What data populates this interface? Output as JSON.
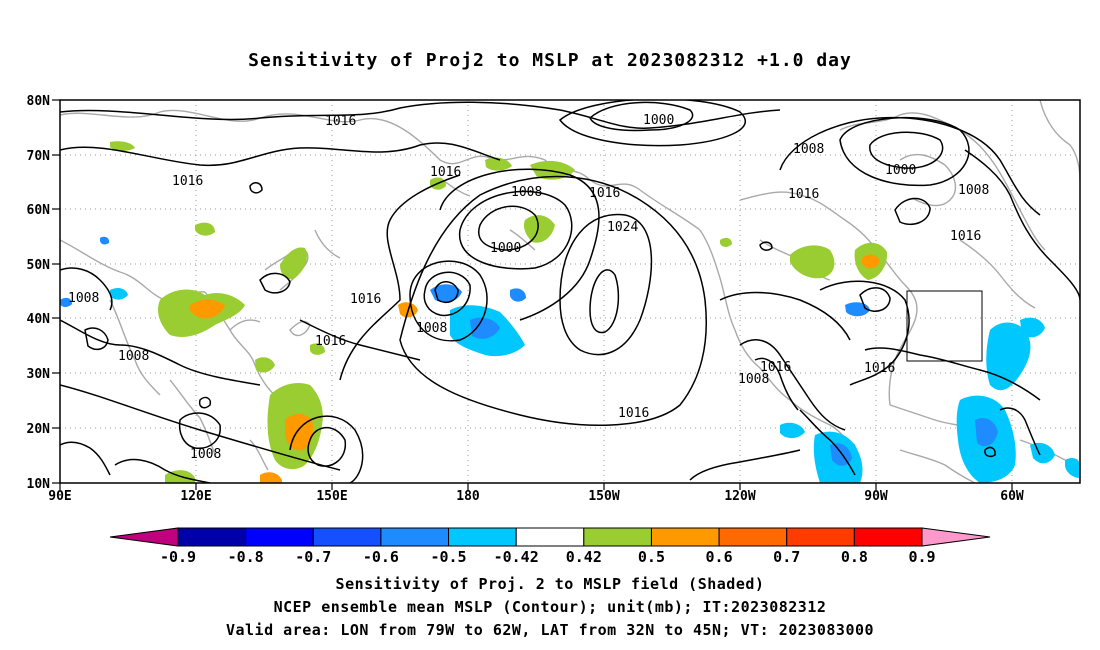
{
  "title": "Sensitivity of Proj2 to MSLP at 2023082312 +1.0 day",
  "lat_labels": [
    "80N",
    "70N",
    "60N",
    "50N",
    "40N",
    "30N",
    "20N",
    "10N"
  ],
  "lon_labels": [
    "90E",
    "120E",
    "150E",
    "180",
    "150W",
    "120W",
    "90W",
    "60W"
  ],
  "contour_labels": [
    {
      "text": "1016",
      "name": "contour-1016-northpacific"
    },
    {
      "text": "1016",
      "name": "contour-1016-siberia"
    },
    {
      "text": "1000",
      "name": "contour-1000-arctic"
    },
    {
      "text": "1008",
      "name": "contour-1008-hudson"
    },
    {
      "text": "1000",
      "name": "contour-1000-greenland"
    },
    {
      "text": "1008",
      "name": "contour-1008-labrador"
    },
    {
      "text": "1016",
      "name": "contour-1016-canada"
    },
    {
      "text": "1016",
      "name": "contour-1016-atlantic"
    },
    {
      "text": "1016",
      "name": "contour-1016-sea-of-okhotsk"
    },
    {
      "text": "1008",
      "name": "contour-1008-bering"
    },
    {
      "text": "1016",
      "name": "contour-1016-gulf-alaska"
    },
    {
      "text": "1024",
      "name": "contour-1024-high"
    },
    {
      "text": "1000",
      "name": "contour-1000-low"
    },
    {
      "text": "1016",
      "name": "contour-1016-kamchatka"
    },
    {
      "text": "1008",
      "name": "contour-1008-aleutian"
    },
    {
      "text": "1016",
      "name": "contour-1016-japan"
    },
    {
      "text": "1008",
      "name": "contour-1008-india"
    },
    {
      "text": "1008",
      "name": "contour-1008-bay-of-bengal"
    },
    {
      "text": "1008",
      "name": "contour-1008-philippine"
    },
    {
      "text": "1016",
      "name": "contour-1016-subtropical"
    },
    {
      "text": "1016",
      "name": "contour-1016-mexico"
    },
    {
      "text": "1008",
      "name": "contour-1008-mexico"
    },
    {
      "text": "1016",
      "name": "contour-1016-bermuda"
    }
  ],
  "colorbar": {
    "labels": [
      "-0.9",
      "-0.8",
      "-0.7",
      "-0.6",
      "-0.5",
      "-0.42",
      "0.42",
      "0.5",
      "0.6",
      "0.7",
      "0.8",
      "0.9"
    ],
    "colors": [
      "#c0007c",
      "#0000a8",
      "#0000ff",
      "#1450ff",
      "#1e8cff",
      "#00c8ff",
      "#ffffff",
      "#9acd32",
      "#ff9900",
      "#ff6a00",
      "#ff3c00",
      "#ff0000",
      "#ff99cc"
    ]
  },
  "footer": {
    "line1": "Sensitivity of Proj. 2 to MSLP field (Shaded)",
    "line2": "NCEP ensemble mean MSLP (Contour); unit(mb); IT:2023082312",
    "line3": "Valid area: LON from 79W to 62W, LAT from 32N to 45N; VT: 2023083000"
  },
  "colors": {
    "coastline": "#a9a9a9",
    "contour": "#000000",
    "grid": "#9a9a9a",
    "positive_green": "#9acd32",
    "positive_orange": "#ff9900",
    "positive_red": "#ff6a00",
    "negative_light": "#00c8ff",
    "negative_mid": "#1e8cff",
    "negative_dark": "#1432ff"
  }
}
